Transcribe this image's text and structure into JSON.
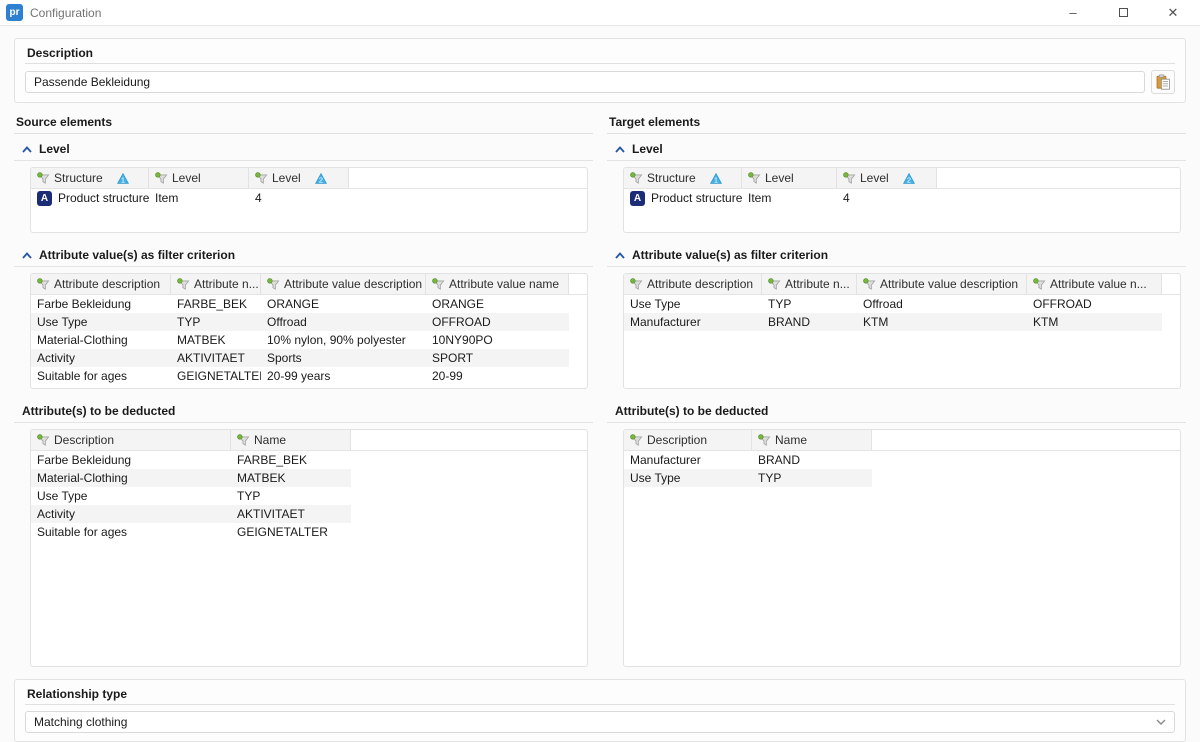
{
  "window": {
    "title": "Configuration",
    "icon_text": "pr"
  },
  "description": {
    "label": "Description",
    "value": "Passende Bekleidung"
  },
  "source": {
    "heading": "Source elements",
    "level": {
      "title": "Level",
      "columns": [
        {
          "label": "Structure",
          "sort": "1"
        },
        {
          "label": "Level"
        },
        {
          "label": "Level",
          "sort": "2"
        }
      ],
      "rows": [
        {
          "icon": "product-structure",
          "cells": [
            "Product structure",
            "Item",
            "4"
          ]
        }
      ]
    },
    "filter": {
      "title": "Attribute value(s) as filter criterion",
      "columns": [
        {
          "label": "Attribute description"
        },
        {
          "label": "Attribute n..."
        },
        {
          "label": "Attribute value description"
        },
        {
          "label": "Attribute value name"
        }
      ],
      "rows": [
        {
          "cells": [
            "Farbe Bekleidung",
            "FARBE_BEK",
            "ORANGE",
            "ORANGE"
          ]
        },
        {
          "cells": [
            "Use Type",
            "TYP",
            "Offroad",
            "OFFROAD"
          ]
        },
        {
          "cells": [
            "Material-Clothing",
            "MATBEK",
            "10% nylon, 90% polyester",
            "10NY90PO"
          ]
        },
        {
          "cells": [
            "Activity",
            "AKTIVITAET",
            "Sports",
            "SPORT"
          ]
        },
        {
          "cells": [
            "Suitable for ages",
            "GEIGNETALTER",
            "20-99 years",
            "20-99"
          ]
        }
      ]
    },
    "deducted": {
      "title": "Attribute(s) to be deducted",
      "columns": [
        {
          "label": "Description"
        },
        {
          "label": "Name"
        }
      ],
      "rows": [
        {
          "cells": [
            "Farbe Bekleidung",
            "FARBE_BEK"
          ]
        },
        {
          "cells": [
            "Material-Clothing",
            "MATBEK"
          ]
        },
        {
          "cells": [
            "Use Type",
            "TYP"
          ]
        },
        {
          "cells": [
            "Activity",
            "AKTIVITAET"
          ]
        },
        {
          "cells": [
            "Suitable for ages",
            "GEIGNETALTER"
          ]
        }
      ]
    }
  },
  "target": {
    "heading": "Target elements",
    "level": {
      "title": "Level",
      "columns": [
        {
          "label": "Structure",
          "sort": "1"
        },
        {
          "label": "Level"
        },
        {
          "label": "Level",
          "sort": "2"
        }
      ],
      "rows": [
        {
          "icon": "product-structure",
          "cells": [
            "Product structure",
            "Item",
            "4"
          ]
        }
      ]
    },
    "filter": {
      "title": "Attribute value(s) as filter criterion",
      "columns": [
        {
          "label": "Attribute description"
        },
        {
          "label": "Attribute n..."
        },
        {
          "label": "Attribute value description"
        },
        {
          "label": "Attribute value n..."
        }
      ],
      "rows": [
        {
          "cells": [
            "Use Type",
            "TYP",
            "Offroad",
            "OFFROAD"
          ]
        },
        {
          "cells": [
            "Manufacturer",
            "BRAND",
            "KTM",
            "KTM"
          ]
        }
      ]
    },
    "deducted": {
      "title": "Attribute(s) to be deducted",
      "columns": [
        {
          "label": "Description"
        },
        {
          "label": "Name"
        }
      ],
      "rows": [
        {
          "cells": [
            "Manufacturer",
            "BRAND"
          ]
        },
        {
          "cells": [
            "Use Type",
            "TYP"
          ]
        }
      ]
    }
  },
  "relationship": {
    "label": "Relationship type",
    "value": "Matching clothing"
  }
}
